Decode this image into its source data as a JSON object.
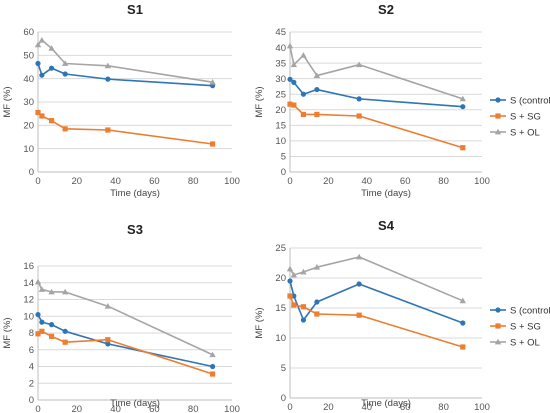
{
  "series_colors": [
    "#2e75b6",
    "#ed7d31",
    "#a5a5a5"
  ],
  "chart_data": [
    {
      "type": "line",
      "title": "S1",
      "xlabel": "Time (days)",
      "ylabel": "MF (%)",
      "xlim": [
        0,
        100
      ],
      "ylim": [
        0,
        60
      ],
      "xticks": [
        0,
        20,
        40,
        60,
        80,
        100
      ],
      "yticks": [
        0,
        10,
        20,
        30,
        40,
        50,
        60
      ],
      "legend": false,
      "grid": true,
      "series": [
        {
          "name": "S (control)",
          "x": [
            0,
            2,
            7,
            14,
            36,
            90
          ],
          "y": [
            46.5,
            41.5,
            44.5,
            42,
            39.8,
            37
          ]
        },
        {
          "name": "S + SG",
          "x": [
            0,
            2,
            7,
            14,
            36,
            90
          ],
          "y": [
            25.5,
            24,
            22,
            18.5,
            18,
            12
          ]
        },
        {
          "name": "S + OL",
          "x": [
            0,
            2,
            7,
            14,
            36,
            90
          ],
          "y": [
            54.5,
            56.5,
            53,
            46.5,
            45.5,
            38.5
          ]
        }
      ]
    },
    {
      "type": "line",
      "title": "S2",
      "xlabel": "Time (days)",
      "ylabel": "MF (%)",
      "xlim": [
        0,
        100
      ],
      "ylim": [
        0,
        45
      ],
      "xticks": [
        0,
        20,
        40,
        60,
        80,
        100
      ],
      "yticks": [
        0,
        5,
        10,
        15,
        20,
        25,
        30,
        35,
        40,
        45
      ],
      "legend": true,
      "legend_position": "right",
      "grid": true,
      "series": [
        {
          "name": "S (control)",
          "x": [
            0,
            2,
            7,
            14,
            36,
            90
          ],
          "y": [
            29.8,
            28.8,
            25,
            26.5,
            23.5,
            21
          ]
        },
        {
          "name": "S + SG",
          "x": [
            0,
            2,
            7,
            14,
            36,
            90
          ],
          "y": [
            21.8,
            21.5,
            18.5,
            18.5,
            18,
            7.8
          ]
        },
        {
          "name": "S + OL",
          "x": [
            0,
            2,
            7,
            14,
            36,
            90
          ],
          "y": [
            40.5,
            34.5,
            37.5,
            31,
            34.5,
            23.5
          ]
        }
      ]
    },
    {
      "type": "line",
      "title": "S3",
      "xlabel": "Time (days)",
      "ylabel": "MF (%)",
      "xlim": [
        0,
        100
      ],
      "ylim": [
        0,
        16
      ],
      "xticks": [
        0,
        20,
        40,
        60,
        80,
        100
      ],
      "yticks": [
        0,
        2,
        4,
        6,
        8,
        10,
        12,
        14,
        16
      ],
      "legend": false,
      "grid": true,
      "series": [
        {
          "name": "S (control)",
          "x": [
            0,
            2,
            7,
            14,
            36,
            90
          ],
          "y": [
            10.2,
            9.3,
            9,
            8.2,
            6.7,
            4
          ]
        },
        {
          "name": "S + SG",
          "x": [
            0,
            2,
            7,
            14,
            36,
            90
          ],
          "y": [
            7.9,
            8.2,
            7.6,
            6.9,
            7.2,
            3.1
          ]
        },
        {
          "name": "S + OL",
          "x": [
            0,
            2,
            7,
            14,
            36,
            90
          ],
          "y": [
            14.1,
            13.2,
            12.9,
            12.9,
            11.2,
            5.4
          ]
        }
      ]
    },
    {
      "type": "line",
      "title": "S4",
      "xlabel": "Time (days)",
      "ylabel": "MF (%)",
      "xlim": [
        0,
        100
      ],
      "ylim": [
        0,
        25
      ],
      "xticks": [
        0,
        20,
        40,
        60,
        80,
        100
      ],
      "yticks": [
        0,
        5,
        10,
        15,
        20,
        25
      ],
      "legend": true,
      "legend_position": "right",
      "grid": true,
      "series": [
        {
          "name": "S (control)",
          "x": [
            0,
            2,
            7,
            14,
            36,
            90
          ],
          "y": [
            19.5,
            17,
            13,
            16,
            19,
            12.5
          ]
        },
        {
          "name": "S + SG",
          "x": [
            0,
            2,
            7,
            14,
            36,
            90
          ],
          "y": [
            17,
            15.5,
            15.2,
            14,
            13.8,
            8.5
          ]
        },
        {
          "name": "S + OL",
          "x": [
            0,
            2,
            7,
            14,
            36,
            90
          ],
          "y": [
            21.5,
            20.5,
            21,
            21.8,
            23.5,
            16.2
          ]
        }
      ]
    }
  ]
}
